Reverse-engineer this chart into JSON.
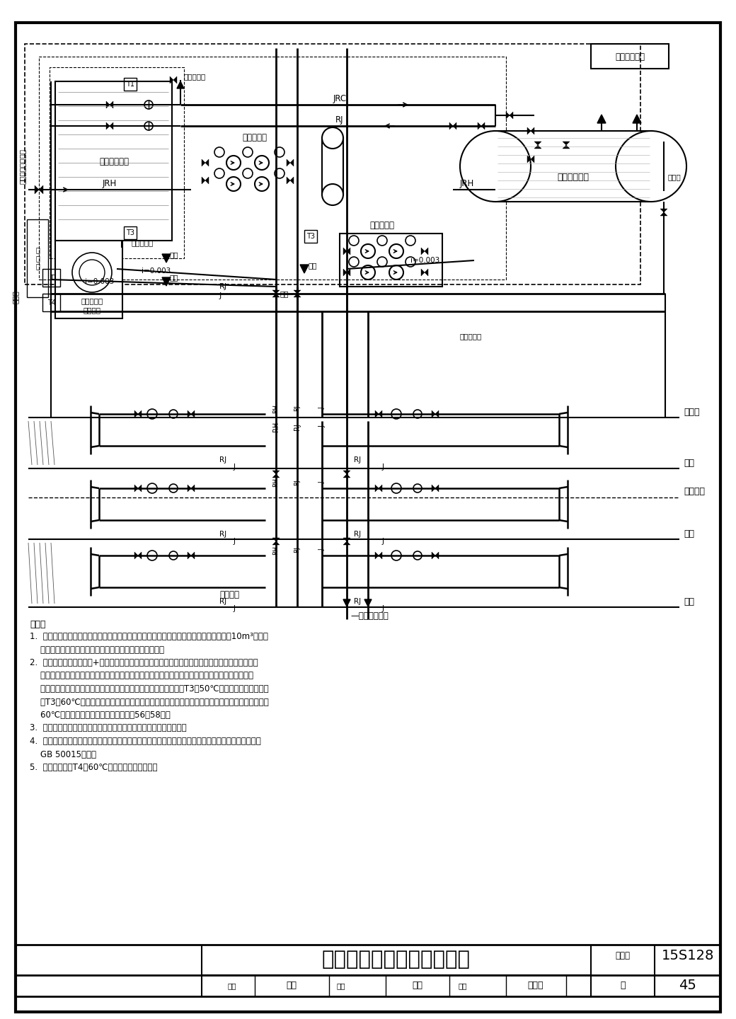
{
  "title": "集中太阳能热水系统示意图",
  "atlas_no_label": "图集号",
  "atlas_no": "15S128",
  "page_label": "页",
  "page_no": "45",
  "note_title": "说明：",
  "notes": [
    "1.  本系统为集中集热、集中储热并供热的集中太阳能热水系统，适用于热水储水总容积在10m³以下，",
    "    有可靠物业管理、供水管路集中的单栋多层住宅类建筑。",
    "2.  系统采用承压储热水罐+燃气快速式水加热器供水方式。其特点是太阳能集热系统作为预热系统，",
    "    集热器与储热水罐之间采用温差控制的强制循环方式，不断把储热水罐的水加热，作为预热水储存",
    "    于水罐中。供水时，热水由储热水罐顶入燃气快速式水加热器。当T3＜50℃时，则加热装置启动；",
    "    当T3＞60℃时，加热装置关闭。在燃气快速式水加热器后设置太阳能恒温混水阀，保证供水温度＜",
    "    60℃。太阳能恒温混水阀详见本图集第56～58页。",
    "3.  本系统的优点在于减少辅助热源的用量，最大限度地利用太阳能。",
    "4.  在热水供水管或回水管上设置消灭致病菌的消毒设施，保证出水水质满足《建筑给水排水设计规范》",
    "    GB 50015要求。",
    "5.  故障控制：当T4＞60℃时报警，电动阀关闭。"
  ]
}
